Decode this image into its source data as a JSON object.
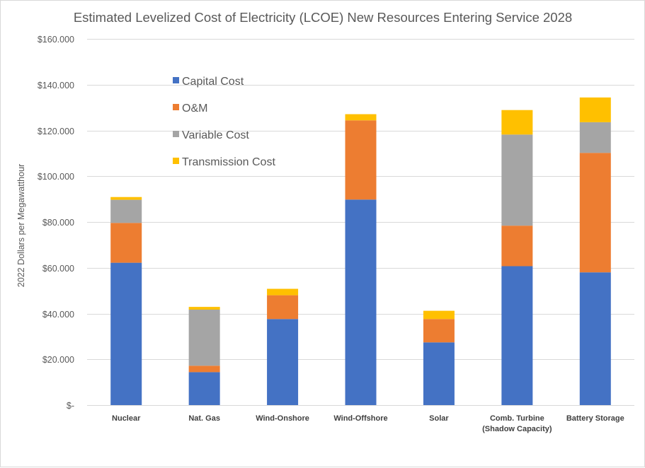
{
  "chart_data": {
    "type": "bar",
    "stacked": true,
    "title": "Estimated Levelized Cost of Electricity (LCOE) New Resources Entering Service 2028",
    "xlabel": "",
    "ylabel": "2022 Dollars per Megawatthour",
    "ylim": [
      0,
      160
    ],
    "yticks": [
      0,
      20,
      40,
      60,
      80,
      100,
      120,
      140,
      160
    ],
    "ytick_labels": [
      "$-",
      "$20.000",
      "$40.000",
      "$60.000",
      "$80.000",
      "$100.000",
      "$120.000",
      "$140.000",
      "$160.000"
    ],
    "grid": true,
    "legend_position": "top-left-inside",
    "categories": [
      [
        "Nuclear"
      ],
      [
        "Nat. Gas"
      ],
      [
        "Wind-Onshore"
      ],
      [
        "Wind-Offshore"
      ],
      [
        "Solar"
      ],
      [
        "Comb. Turbine",
        "(Shadow Capacity)"
      ],
      [
        "Battery Storage"
      ]
    ],
    "series": [
      {
        "name": "Capital Cost",
        "color": "#4472c4",
        "values": [
          62.2,
          14.4,
          37.6,
          89.8,
          27.4,
          60.7,
          58.0
        ]
      },
      {
        "name": "O&M",
        "color": "#ed7d31",
        "values": [
          17.4,
          2.8,
          10.4,
          34.6,
          10.2,
          17.7,
          52.2
        ]
      },
      {
        "name": "Variable Cost",
        "color": "#a5a5a5",
        "values": [
          10.1,
          24.5,
          0,
          0,
          0,
          39.8,
          13.4
        ]
      },
      {
        "name": "Transmission Cost",
        "color": "#ffc000",
        "values": [
          1.2,
          1.2,
          2.8,
          2.7,
          3.6,
          10.7,
          10.8
        ]
      }
    ]
  }
}
